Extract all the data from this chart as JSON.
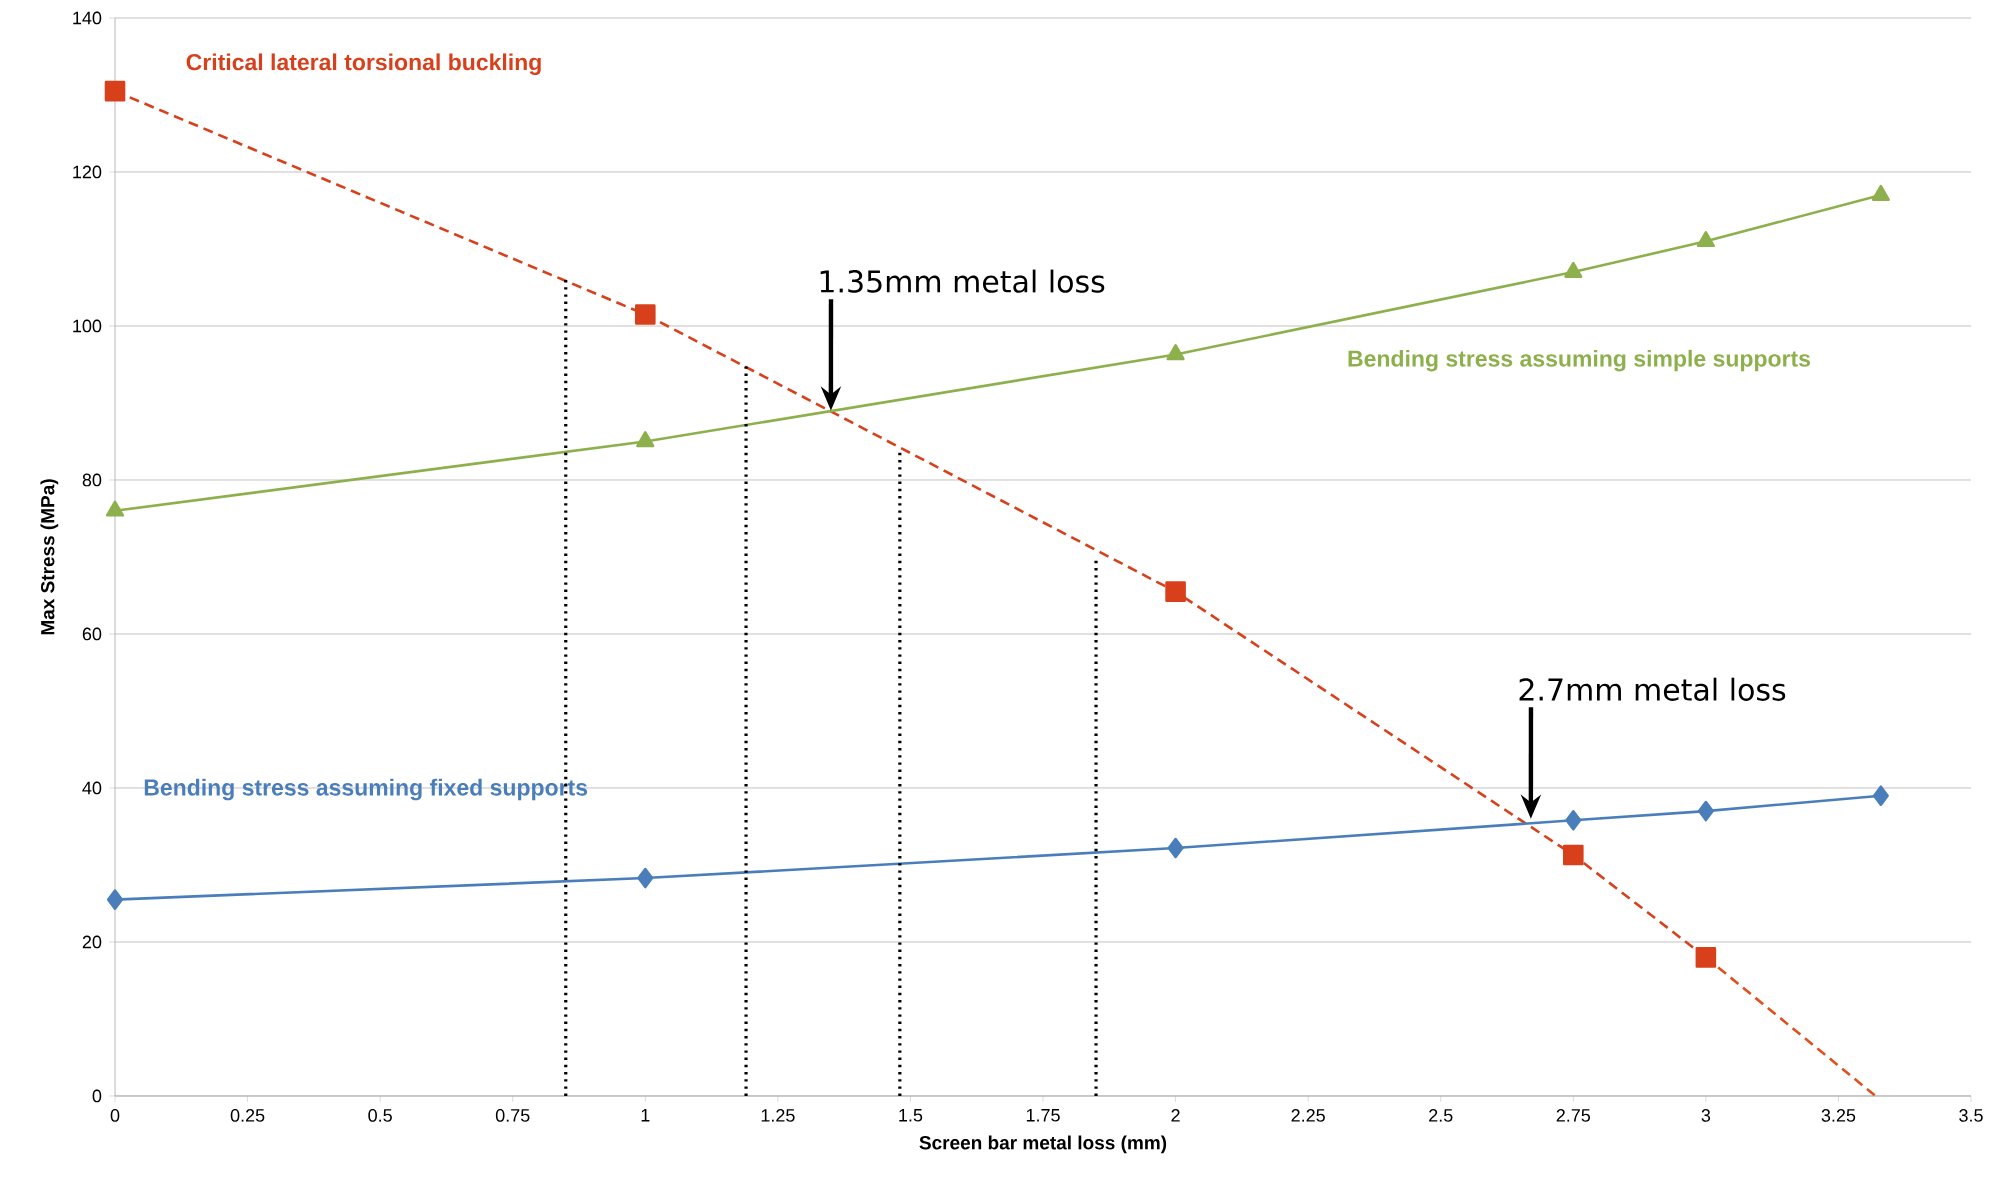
{
  "chart_data": {
    "type": "line",
    "xlabel": "Screen bar metal loss (mm)",
    "ylabel": "Max Stress (MPa)",
    "xlim": [
      0,
      3.5
    ],
    "xticks": [
      0,
      0.25,
      0.5,
      0.75,
      1,
      1.25,
      1.5,
      1.75,
      2,
      2.25,
      2.5,
      2.75,
      3,
      3.25,
      3.5
    ],
    "ylim": [
      0,
      140
    ],
    "yticks": [
      0,
      20,
      40,
      60,
      80,
      100,
      120,
      140
    ],
    "grid": "y",
    "series": [
      {
        "name": "Critical lateral torsional buckling",
        "color": "#d8401c",
        "marker": "square",
        "line_style": "dashed",
        "x": [
          0,
          1,
          2,
          2.75,
          3
        ],
        "values": [
          130.5,
          101.5,
          65.5,
          31.3,
          18
        ]
      },
      {
        "color": "#e0501e",
        "marker": "none",
        "line_style": "dashed",
        "x": [
          3,
          3.32
        ],
        "values": [
          18,
          0
        ]
      },
      {
        "name": "Bending stress assuming simple supports",
        "color": "#8db04c",
        "marker": "triangle",
        "line_style": "solid",
        "x": [
          0,
          1,
          2,
          2.75,
          3,
          3.33
        ],
        "values": [
          76,
          85,
          96.3,
          107,
          111,
          117
        ]
      },
      {
        "name": "Bending stress assuming fixed supports",
        "color": "#4a7ebb",
        "marker": "diamond",
        "line_style": "solid",
        "x": [
          0,
          1,
          2,
          2.75,
          3,
          3.33
        ],
        "values": [
          25.5,
          28.3,
          32.2,
          35.8,
          37,
          39
        ]
      },
      {
        "color": "#000000",
        "marker": "none",
        "line_style": "dotted",
        "x": [
          0.85,
          0.85
        ],
        "values": [
          0,
          106
        ]
      },
      {
        "color": "#000000",
        "marker": "none",
        "line_style": "dotted",
        "x": [
          1.19,
          1.19
        ],
        "values": [
          0,
          95
        ]
      },
      {
        "color": "#000000",
        "marker": "none",
        "line_style": "dotted",
        "x": [
          1.48,
          1.48
        ],
        "values": [
          0,
          84
        ]
      },
      {
        "color": "#000000",
        "marker": "none",
        "line_style": "dotted",
        "x": [
          1.85,
          1.85
        ],
        "values": [
          0,
          70
        ]
      }
    ],
    "annotations": [
      "1.35mm metal loss",
      "2.7mm metal loss"
    ]
  }
}
